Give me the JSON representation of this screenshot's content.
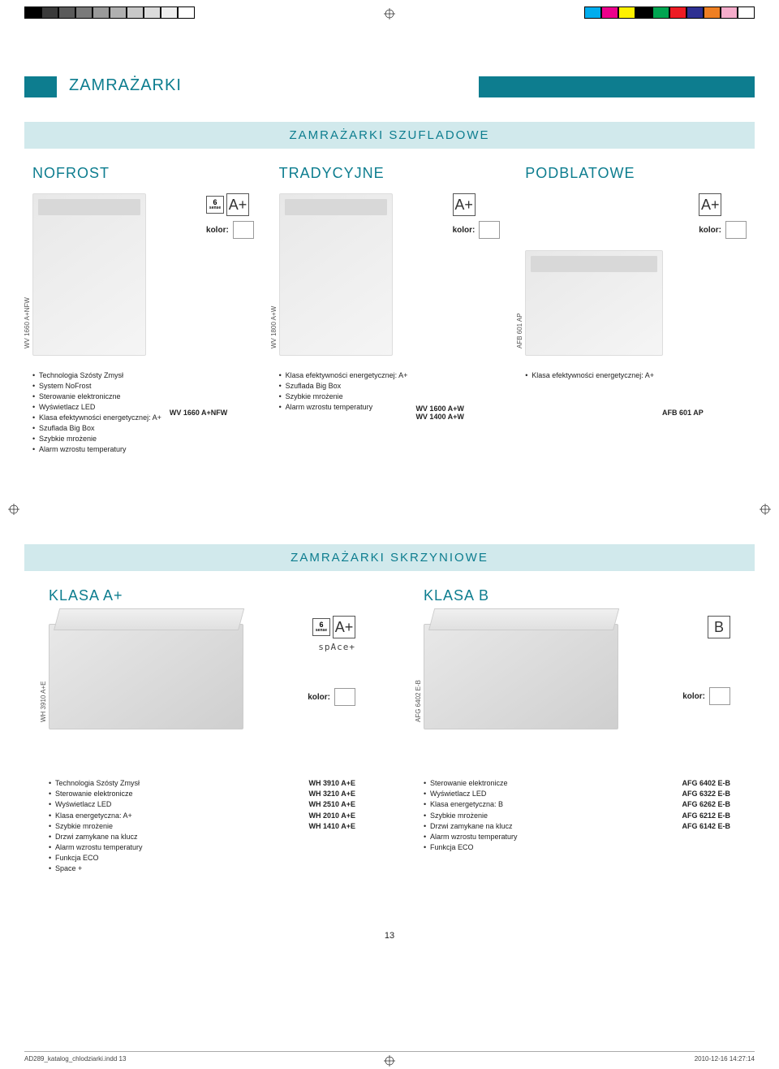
{
  "print_colorbar_left": [
    "#000000",
    "#3a3a3a",
    "#5a5a5a",
    "#7a7a7a",
    "#9a9a9a",
    "#b0b0b0",
    "#c8c8c8",
    "#dcdcdc",
    "#eeeeee",
    "#ffffff"
  ],
  "print_colorbar_right": [
    "#00adee",
    "#ec008b",
    "#fff100",
    "#000000",
    "#00a551",
    "#ed1c24",
    "#2e3092",
    "#ee7f23",
    "#f6adcb",
    "#ffffff"
  ],
  "header": {
    "title": "ZAMRAŻARKI"
  },
  "sections": {
    "szufladowe": "ZAMRAŻARKI SZUFLADOWE",
    "skrzyniowe": "ZAMRAŻARKI SKRZYNIOWE"
  },
  "kolor_label": "kolor:",
  "energy_aplus": "A+",
  "energy_b": "B",
  "sense_label": "6\nsense",
  "space_label": "spAce+",
  "szufladowe": {
    "nofrost": {
      "title": "NOFROST",
      "code": "WV 1660 A+NFW",
      "model": "WV 1660 A+NFW",
      "features": [
        "Technologia Szósty Zmysł",
        "System NoFrost",
        "Sterowanie elektroniczne",
        "Wyświetlacz LED",
        "Klasa efektywności energetycznej: A+",
        "Szuflada Big Box",
        "Szybkie mrożenie",
        "Alarm wzrostu temperatury"
      ]
    },
    "tradycyjne": {
      "title": "TRADYCYJNE",
      "code": "WV 1800 A+W",
      "model1": "WV 1600 A+W",
      "model2": "WV 1400 A+W",
      "features": [
        "Klasa efektywności energetycznej: A+",
        "Szuflada Big Box",
        "Szybkie mrożenie",
        "Alarm wzrostu temperatury"
      ]
    },
    "podblatowe": {
      "title": "PODBLATOWE",
      "code": "AFB 601 AP",
      "model": "AFB 601 AP",
      "features": [
        "Klasa efektywności energetycznej: A+"
      ]
    }
  },
  "skrzyniowe": {
    "klasa_a": {
      "title": "KLASA A+",
      "code": "WH 3910 A+E",
      "features": [
        "Technologia Szósty Zmysł",
        "Sterowanie elektronicze",
        "Wyświetlacz LED",
        "Klasa energetyczna: A+",
        "Szybkie mrożenie",
        "Drzwi zamykane na klucz",
        "Alarm wzrostu temperatury",
        "Funkcja ECO",
        "Space +"
      ],
      "models": [
        "WH 3910 A+E",
        "WH 3210 A+E",
        "WH 2510 A+E",
        "WH 2010 A+E",
        "WH 1410 A+E"
      ]
    },
    "klasa_b": {
      "title": "KLASA B",
      "code": "AFG 6402 E-B",
      "features": [
        "Sterowanie elektronicze",
        "Wyświetlacz LED",
        "Klasa energetyczna: B",
        "Szybkie mrożenie",
        "Drzwi zamykane na klucz",
        "Alarm wzrostu temperatury",
        "Funkcja ECO"
      ],
      "models": [
        "AFG 6402 E-B",
        "AFG 6322 E-B",
        "AFG 6262 E-B",
        "AFG 6212 E-B",
        "AFG 6142 E-B"
      ]
    }
  },
  "page_number": "13",
  "footer": {
    "left": "AD289_katalog_chlodziarki.indd   13",
    "right": "2010-12-16   14:27:14"
  },
  "colors": {
    "brand": "#0d7d8f",
    "band": "#d1e9ec"
  }
}
